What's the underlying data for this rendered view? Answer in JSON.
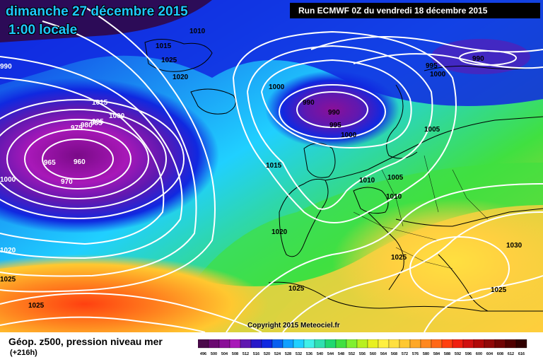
{
  "header": {
    "date_line": "dimanche 27 décembre 2015",
    "time_line": "1:00 locale",
    "run_info": "Run ECMWF 0Z du vendredi 18 décembre 2015"
  },
  "map": {
    "isobar_labels": [
      "1010",
      "1015",
      "1020",
      "1025",
      "990",
      "995",
      "1000",
      "1005",
      "1010",
      "1015",
      "990",
      "990",
      "995",
      "1000",
      "1000",
      "1005",
      "1010",
      "975",
      "980",
      "985",
      "990",
      "965",
      "960",
      "970",
      "1000",
      "995",
      "1015",
      "1000",
      "1020",
      "1020",
      "1025",
      "1025",
      "1025",
      "1030",
      "1025",
      "1025"
    ],
    "colors": {
      "isobar": "#ffffff",
      "low_core": "#8a1098",
      "high_core": "#ffd040"
    }
  },
  "copyright": "Copyright 2015 Meteociel.fr",
  "legend": {
    "title": "Géop. z500, pression niveau mer",
    "subtitle": "(+216h)",
    "scale_values": [
      "496",
      "500",
      "504",
      "508",
      "512",
      "516",
      "520",
      "524",
      "528",
      "532",
      "536",
      "540",
      "544",
      "548",
      "552",
      "556",
      "560",
      "564",
      "568",
      "572",
      "576",
      "580",
      "584",
      "588",
      "592",
      "596",
      "600",
      "604",
      "608",
      "612",
      "616"
    ],
    "scale_colors": [
      "#4a0a4a",
      "#6a0a70",
      "#8a1098",
      "#a818b8",
      "#6018b0",
      "#2818c8",
      "#1028e0",
      "#0860f0",
      "#10a0ff",
      "#20d0ff",
      "#40f0e8",
      "#30e0b0",
      "#20d870",
      "#40e040",
      "#80f030",
      "#b8f020",
      "#e8f020",
      "#fff040",
      "#ffe040",
      "#ffc830",
      "#ffa828",
      "#ff8820",
      "#ff6818",
      "#ff4010",
      "#f02010",
      "#d01010",
      "#b00808",
      "#900808",
      "#700404",
      "#500000",
      "#300000"
    ]
  }
}
